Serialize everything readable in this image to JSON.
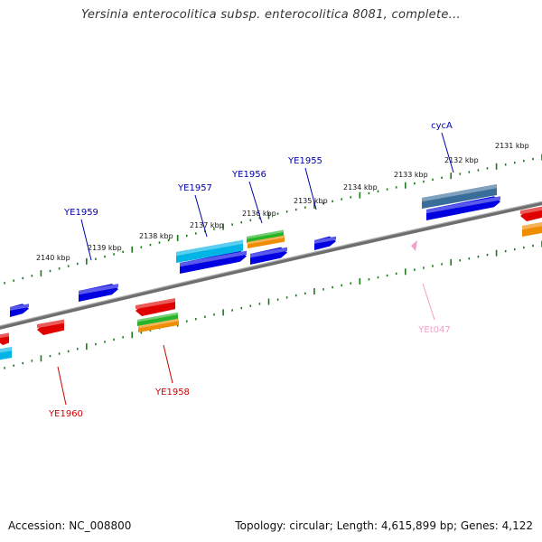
{
  "header": {
    "title": "Yersinia enterocolitica subsp. enterocolitica 8081, complete..."
  },
  "footer": {
    "accession": "Accession: NC_008800",
    "topology": "Topology: circular; Length: 4,615,899 bp; Genes: 4,122"
  },
  "scale_labels": [
    "2140 kbp",
    "2139 kbp",
    "2138 kbp",
    "2137 kbp",
    "2136 kbp",
    "2135 kbp",
    "2134 kbp",
    "2133 kbp",
    "2132 kbp",
    "2131 kbp"
  ],
  "gene_labels": {
    "ye1959": "YE1959",
    "ye1957": "YE1957",
    "ye1956": "YE1956",
    "ye1955": "YE1955",
    "cyca": "cycA",
    "ye1960": "YE1960",
    "ye1958": "YE1958",
    "yet047": "YEt047"
  },
  "colors": {
    "backbone": "#808080",
    "ticks": "#1a7a1a",
    "forward_gene": "#0000e0",
    "reverse_gene": "#e00000",
    "cyan_feature": "#00b4e6",
    "steel_feature": "#3a6e9a",
    "green_feature": "#28b428",
    "orange_feature": "#f08c00",
    "label_blue": "#0000aa",
    "label_red": "#cc0000",
    "label_pink": "#f0a0c8"
  }
}
